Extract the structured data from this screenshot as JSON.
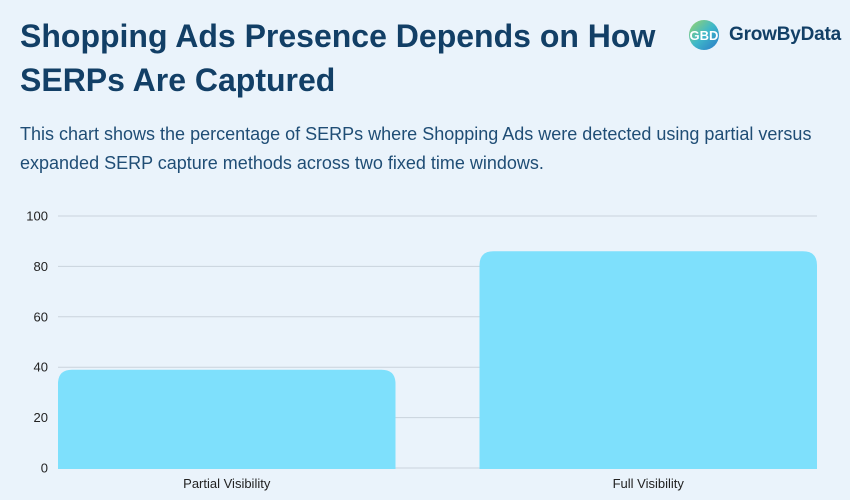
{
  "header": {
    "title": "Shopping Ads Presence Depends on How SERPs Are Captured",
    "subtitle": "This chart shows the percentage of SERPs where Shopping Ads were detected using partial versus expanded SERP capture methods across two fixed time windows.",
    "brand_name": "GrowByData",
    "brand_logo_icon": "growbydata-logo-icon"
  },
  "colors": {
    "bar": "#7ee0fc",
    "grid": "#c9d3dc",
    "title": "#123f66",
    "background": "#eaf3fb"
  },
  "chart_data": {
    "type": "bar",
    "categories": [
      "Partial Visibility",
      "Full Visibility"
    ],
    "values": [
      39,
      86
    ],
    "ylim": [
      0,
      100
    ],
    "yticks": [
      0,
      20,
      40,
      60,
      80,
      100
    ],
    "xlabel": "",
    "ylabel": "",
    "grid": true,
    "legend": "none"
  }
}
